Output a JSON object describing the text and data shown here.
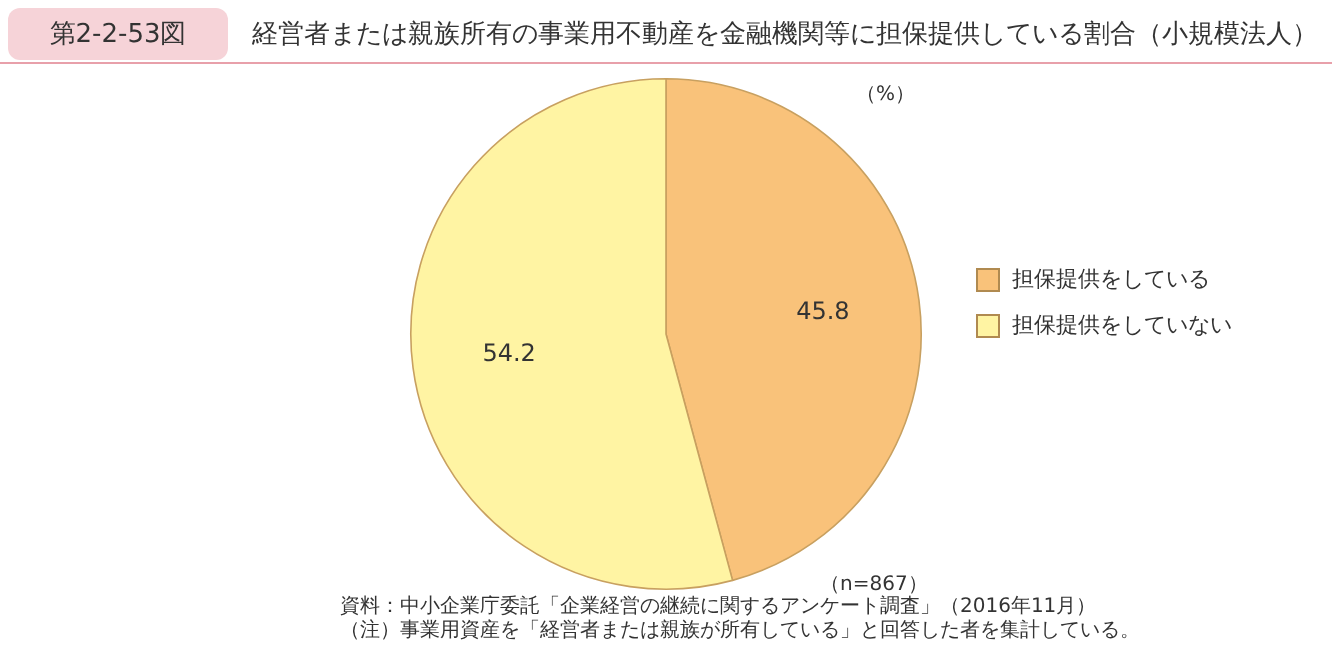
{
  "chart_data": {
    "type": "pie",
    "title": "経営者または親族所有の事業用不動産を金融機関等に担保提供している割合（小規模法人）",
    "categories": [
      "担保提供をしている",
      "担保提供をしていない"
    ],
    "values": [
      45.8,
      54.2
    ],
    "colors": [
      "#f9c27a",
      "#fff4a3"
    ],
    "data_labels": true,
    "legend": "right",
    "annotations": [
      "第2-2-53図",
      "（%）",
      "（n=867）",
      "資料：中小企業庁委託「企業経営の継続に関するアンケート調査」（2016年11月）",
      "（注）事業用資産を「経営者または親族が所有している」と回答した者を集計している。"
    ]
  }
}
